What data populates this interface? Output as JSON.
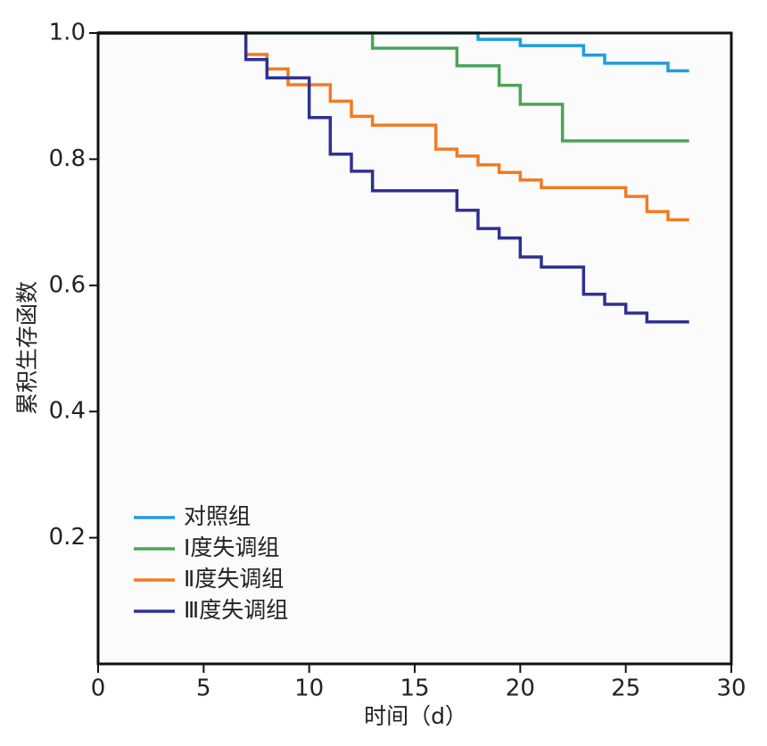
{
  "chart_data": {
    "type": "step",
    "x_label": "时间（d）",
    "y_label": "累积生存函数",
    "xlim": [
      0,
      30
    ],
    "ylim": [
      0,
      1
    ],
    "xticks": [
      0,
      5,
      10,
      15,
      20,
      25,
      30
    ],
    "yticks": [
      {
        "value": 0.2,
        "label": "0.2"
      },
      {
        "value": 0.4,
        "label": "0.4"
      },
      {
        "value": 0.6,
        "label": "0.6"
      },
      {
        "value": 0.8,
        "label": "0.8"
      },
      {
        "value": 1,
        "label": "1.0"
      }
    ],
    "legend": "lower left",
    "series": [
      {
        "name": "对照组",
        "color": "#1e9ee0",
        "x": [
          0,
          18,
          20,
          23,
          24,
          27,
          28
        ],
        "values": [
          1.0,
          0.99,
          0.98,
          0.965,
          0.952,
          0.94,
          0.94
        ]
      },
      {
        "name": "Ⅰ度失调组",
        "color": "#4aa557",
        "x": [
          0,
          13,
          17,
          19,
          20,
          22,
          28
        ],
        "values": [
          1.0,
          0.976,
          0.948,
          0.917,
          0.887,
          0.829,
          0.829
        ]
      },
      {
        "name": "Ⅱ度失调组",
        "color": "#f37a22",
        "x": [
          0,
          7,
          8,
          9,
          11,
          12,
          13,
          16,
          17,
          18,
          19,
          20,
          21,
          25,
          26,
          27,
          28
        ],
        "values": [
          1.0,
          0.966,
          0.943,
          0.918,
          0.892,
          0.868,
          0.854,
          0.816,
          0.805,
          0.791,
          0.779,
          0.767,
          0.755,
          0.741,
          0.717,
          0.704,
          0.704
        ]
      },
      {
        "name": "Ⅲ度失调组",
        "color": "#2e3192",
        "x": [
          0,
          7,
          8,
          10,
          11,
          12,
          13,
          17,
          18,
          19,
          20,
          21,
          23,
          24,
          25,
          26,
          28
        ],
        "values": [
          1.0,
          0.958,
          0.929,
          0.866,
          0.808,
          0.781,
          0.75,
          0.719,
          0.69,
          0.675,
          0.645,
          0.629,
          0.586,
          0.57,
          0.556,
          0.542,
          0.542
        ]
      }
    ]
  }
}
